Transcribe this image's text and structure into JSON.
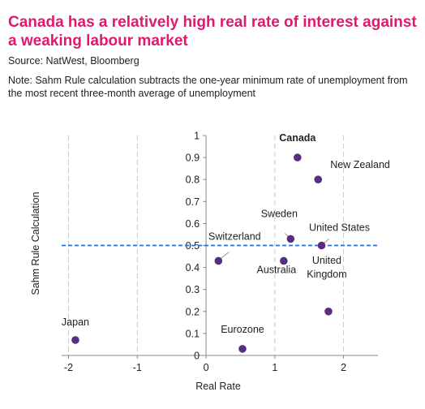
{
  "header": {
    "title": "Canada has a relatively high real rate of interest against a weaking labour market",
    "source": "Source: NatWest, Bloomberg",
    "note": "Note: Sahm Rule calculation subtracts the one-year minimum rate of unemployment from the most recent three-month average of unemployment"
  },
  "colors": {
    "title": "#e2186f",
    "points": "#5b2d82",
    "reference_line": "#2e6fd6",
    "grid": "#c8c8c8"
  },
  "chart_data": {
    "type": "scatter",
    "title": "Canada has a relatively high real rate of interest against a weaking labour market",
    "xlabel": "Real Rate",
    "ylabel": "Sahm Rule Calculation",
    "xlim": [
      -2.1,
      2.5
    ],
    "ylim": [
      0,
      1
    ],
    "x_ticks": [
      -2,
      -1,
      0,
      1,
      2
    ],
    "y_ticks": [
      0,
      0.1,
      0.2,
      0.3,
      0.4,
      0.5,
      0.6,
      0.7,
      0.8,
      0.9,
      1
    ],
    "x_tick_labels": [
      "-2",
      "-1",
      "0",
      "1",
      "2"
    ],
    "y_tick_labels": [
      "0",
      "0.1",
      "0.2",
      "0.3",
      "0.4",
      "0.5",
      "0.6",
      "0.7",
      "0.8",
      "0.9",
      "1"
    ],
    "grid": "vertical dashed at x ticks",
    "reference_line": {
      "y": 0.5,
      "style": "dashed"
    },
    "points": [
      {
        "label": "Canada",
        "x": 1.33,
        "y": 0.9
      },
      {
        "label": "New Zealand",
        "x": 1.63,
        "y": 0.8
      },
      {
        "label": "Sweden",
        "x": 1.23,
        "y": 0.53
      },
      {
        "label": "United States",
        "x": 1.68,
        "y": 0.5
      },
      {
        "label": "Switzerland",
        "x": 0.18,
        "y": 0.43
      },
      {
        "label": "Australia",
        "x": 1.13,
        "y": 0.43
      },
      {
        "label": "United Kingdom",
        "x": 1.78,
        "y": 0.2
      },
      {
        "label": "Japan",
        "x": -1.9,
        "y": 0.07
      },
      {
        "label": "Eurozone",
        "x": 0.53,
        "y": 0.03
      }
    ]
  }
}
